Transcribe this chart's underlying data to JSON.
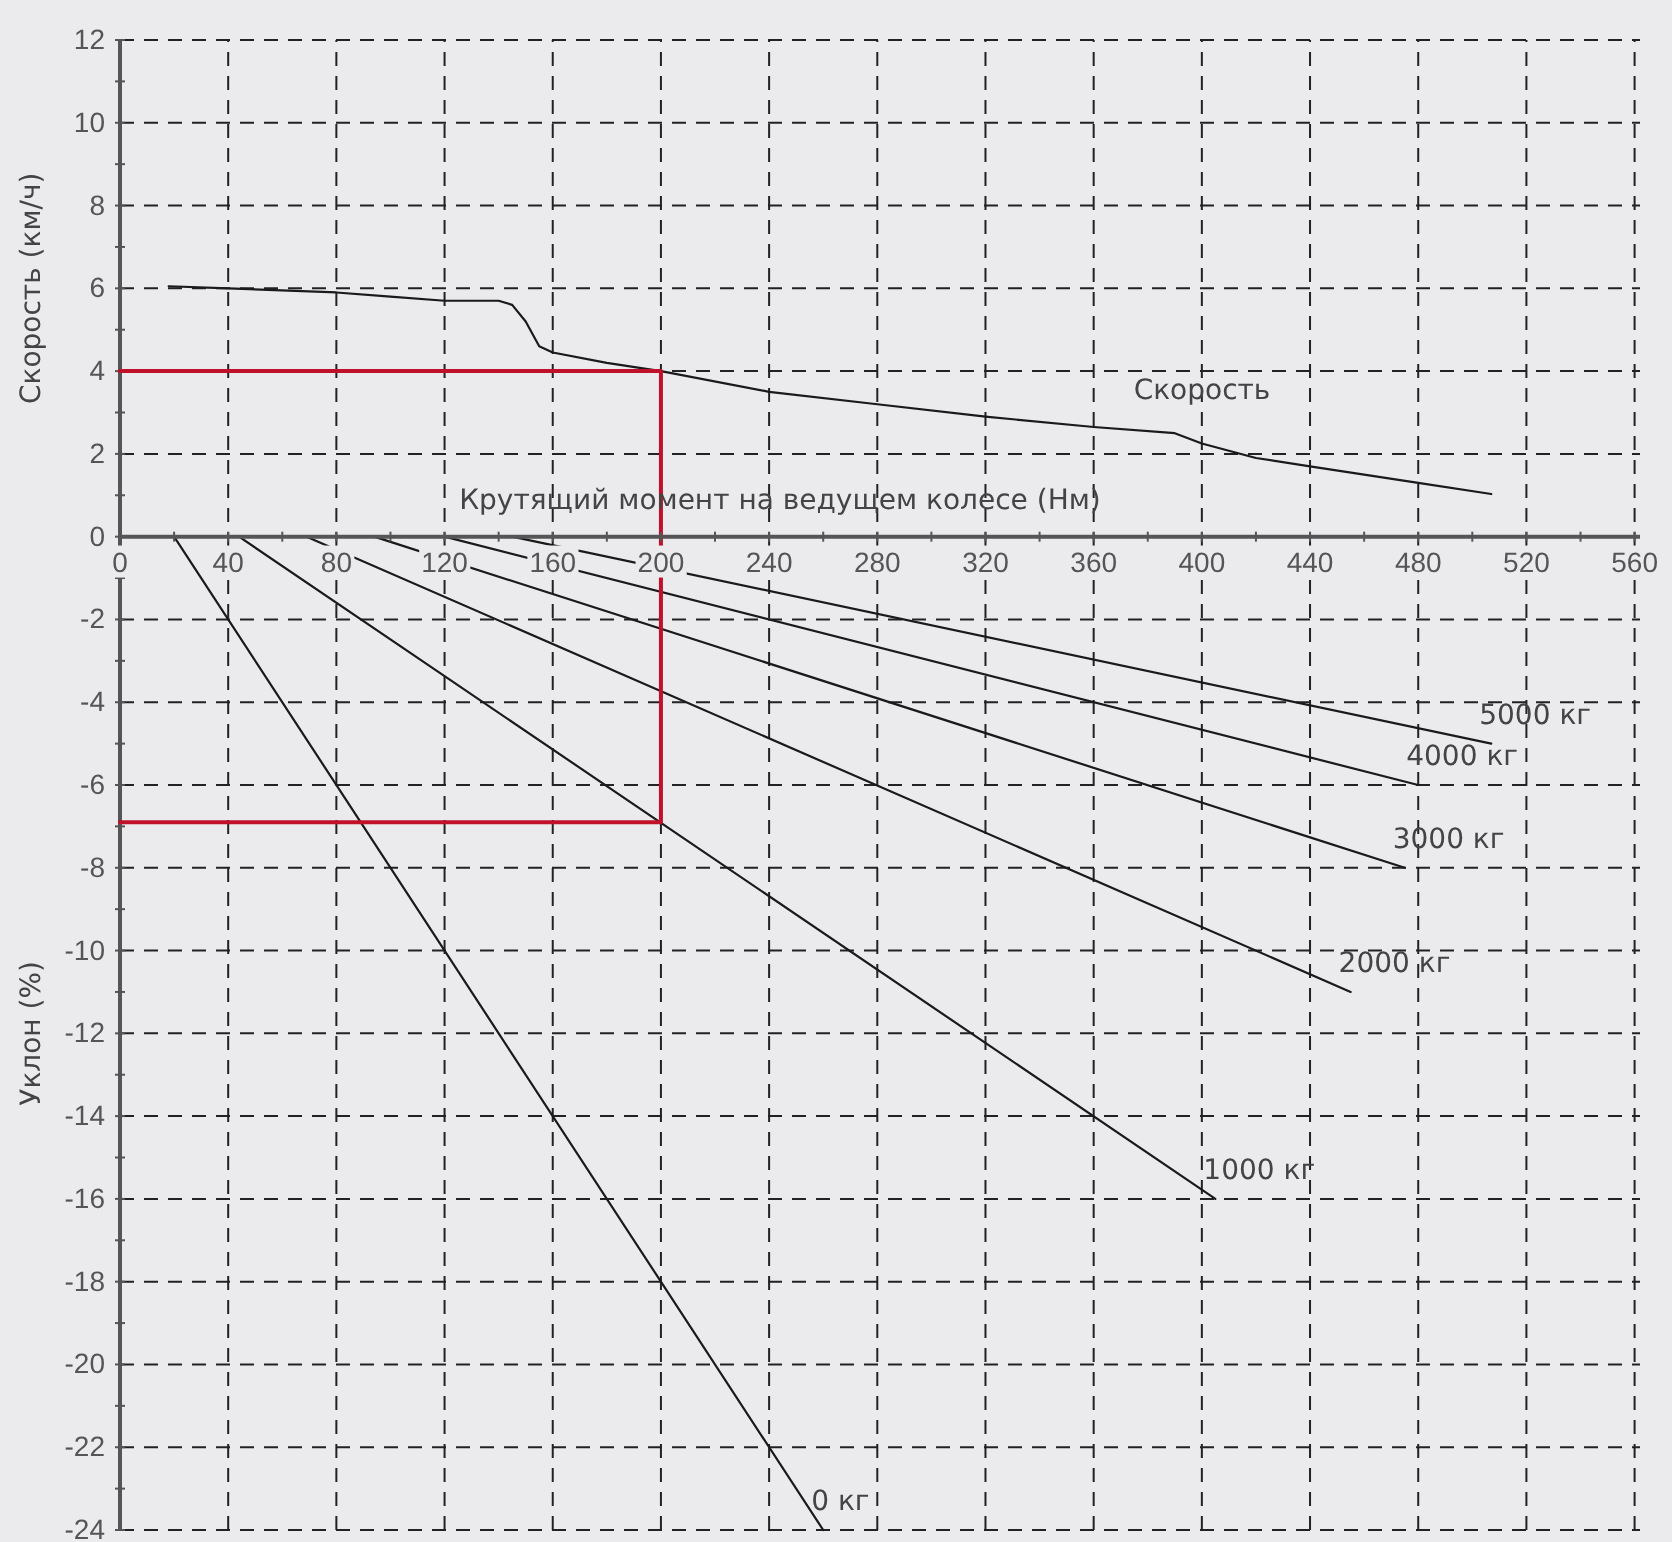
{
  "chart_data": {
    "type": "line",
    "xlabel": "Крутящий момент на ведущем колесе (Нм)",
    "ylabel": "Скорость (км/ч)",
    "annotations": [
      "Уклон (%)"
    ],
    "xlim": [
      0,
      562
    ],
    "ylim": [
      -24,
      12
    ],
    "xticks": [
      0,
      {
        "value": 20,
        "label": null
      },
      40,
      {
        "value": 60,
        "label": null
      },
      80,
      {
        "value": 100,
        "label": null
      },
      120,
      {
        "value": 140,
        "label": null
      },
      160,
      {
        "value": 180,
        "label": null
      },
      200,
      {
        "value": 220,
        "label": null
      },
      240,
      {
        "value": 260,
        "label": null
      },
      280,
      {
        "value": 300,
        "label": null
      },
      320,
      {
        "value": 340,
        "label": null
      },
      360,
      {
        "value": 380,
        "label": null
      },
      400,
      {
        "value": 420,
        "label": null
      },
      440,
      {
        "value": 460,
        "label": null
      },
      480,
      {
        "value": 500,
        "label": null
      },
      520,
      {
        "value": 540,
        "label": null
      },
      560
    ],
    "yticks": [
      -24,
      {
        "value": -23,
        "label": null
      },
      -22,
      {
        "value": -21,
        "label": null
      },
      -20,
      {
        "value": -19,
        "label": null
      },
      -18,
      {
        "value": -17,
        "label": null
      },
      -16,
      {
        "value": -15,
        "label": null
      },
      -14,
      {
        "value": -13,
        "label": null
      },
      -12,
      {
        "value": -11,
        "label": null
      },
      -10,
      {
        "value": -9,
        "label": null
      },
      -8,
      {
        "value": -7,
        "label": null
      },
      -6,
      {
        "value": -5,
        "label": null
      },
      -4,
      {
        "value": -3,
        "label": null
      },
      -2,
      {
        "value": -1,
        "label": null
      },
      0,
      {
        "value": 1,
        "label": null
      },
      2,
      {
        "value": 3,
        "label": null
      },
      4,
      {
        "value": 5,
        "label": null
      },
      6,
      {
        "value": 7,
        "label": null
      },
      8,
      {
        "value": 9,
        "label": null
      },
      10,
      {
        "value": 11,
        "label": null
      },
      12
    ],
    "grid": true,
    "line_style": "solid",
    "series": [
      {
        "name": "Скорость",
        "color": "#1a1a1a",
        "x": [
          18,
          40,
          80,
          100,
          120,
          140,
          145,
          150,
          155,
          160,
          180,
          200,
          240,
          280,
          320,
          360,
          390,
          400,
          420,
          440,
          480,
          507
        ],
        "values": [
          6.05,
          6.0,
          5.9,
          5.8,
          5.7,
          5.7,
          5.6,
          5.2,
          4.6,
          4.45,
          4.2,
          4.0,
          3.5,
          3.2,
          2.9,
          2.65,
          2.5,
          2.25,
          1.9,
          1.7,
          1.3,
          1.03
        ]
      },
      {
        "name": "0 кг",
        "color": "#1a1a1a",
        "x": [
          20,
          260
        ],
        "values": [
          0,
          -24
        ]
      },
      {
        "name": "1000 кг",
        "color": "#1a1a1a",
        "x": [
          44,
          405
        ],
        "values": [
          0,
          -16
        ]
      },
      {
        "name": "2000 кг",
        "color": "#1a1a1a",
        "x": [
          69,
          455
        ],
        "values": [
          0,
          -11
        ]
      },
      {
        "name": "3000 кг",
        "color": "#1a1a1a",
        "x": [
          94,
          475
        ],
        "values": [
          0,
          -8
        ]
      },
      {
        "name": "4000 кг",
        "color": "#1a1a1a",
        "x": [
          120,
          480
        ],
        "values": [
          0,
          -6
        ]
      },
      {
        "name": "5000 кг",
        "color": "#1a1a1a",
        "x": [
          145,
          507
        ],
        "values": [
          0,
          -5
        ]
      },
      {
        "color": "#c0102a",
        "x": [
          0,
          200,
          200,
          0
        ],
        "values": [
          4,
          4,
          -6.9,
          -6.9
        ]
      }
    ]
  }
}
